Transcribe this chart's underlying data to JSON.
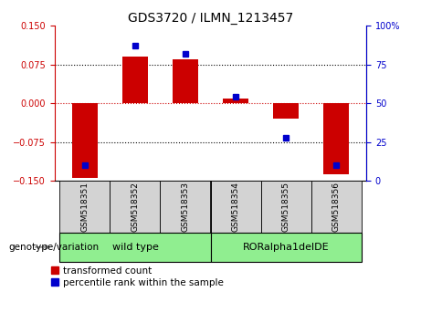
{
  "title": "GDS3720 / ILMN_1213457",
  "samples": [
    "GSM518351",
    "GSM518352",
    "GSM518353",
    "GSM518354",
    "GSM518355",
    "GSM518356"
  ],
  "red_values": [
    -0.145,
    0.09,
    0.085,
    0.01,
    -0.03,
    -0.138
  ],
  "blue_values": [
    10,
    87,
    82,
    54,
    28,
    10
  ],
  "ylim_left": [
    -0.15,
    0.15
  ],
  "ylim_right": [
    0,
    100
  ],
  "group_label": "genotype/variation",
  "group1_label": "wild type",
  "group2_label": "RORalpha1delDE",
  "group_color": "#90EE90",
  "red_color": "#CC0000",
  "blue_color": "#0000CC",
  "bar_width": 0.5,
  "blue_marker_size": 5,
  "tick_fontsize": 7,
  "title_fontsize": 10,
  "legend_fontsize": 7.5,
  "left_ytick_values": [
    -0.15,
    -0.075,
    0,
    0.075,
    0.15
  ],
  "right_ytick_values": [
    0,
    25,
    50,
    75,
    100
  ],
  "right_ytick_labels": [
    "0",
    "25",
    "50",
    "75",
    "100%"
  ]
}
